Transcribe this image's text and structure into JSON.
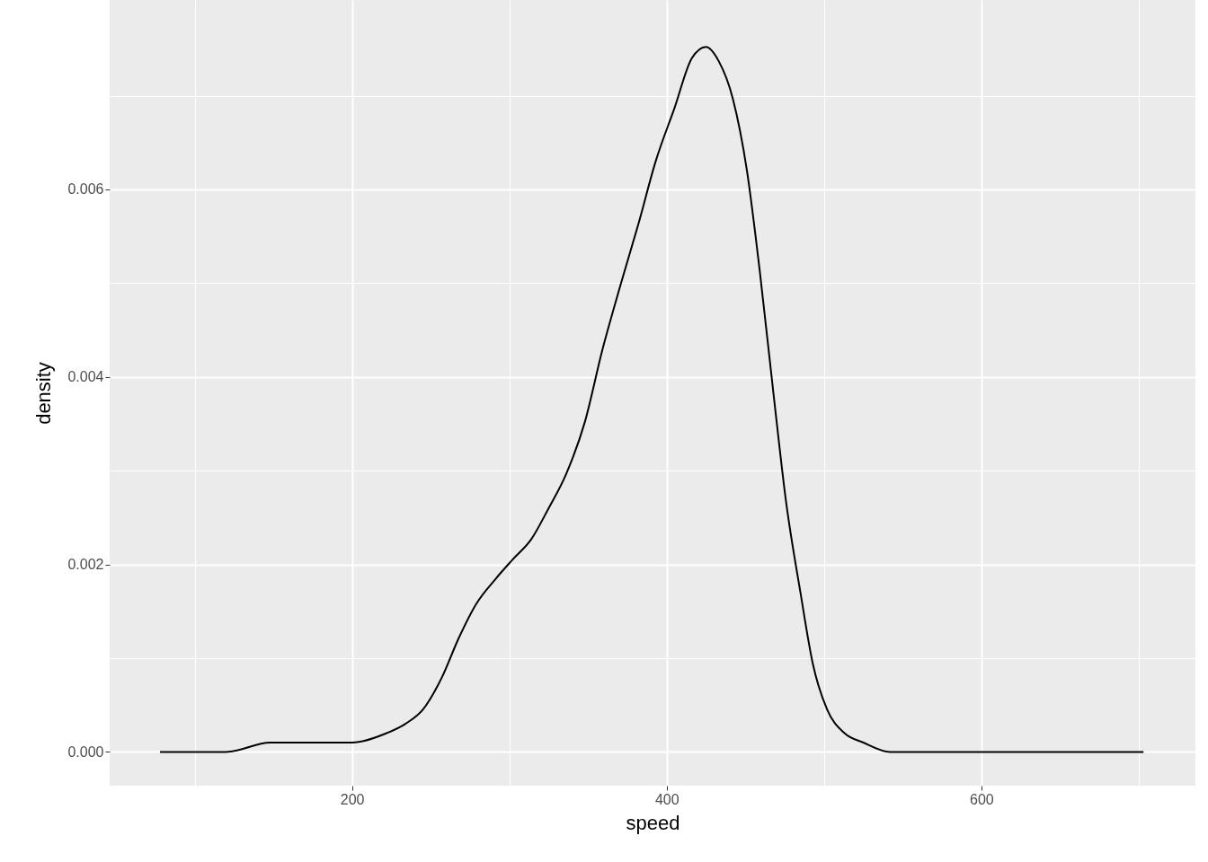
{
  "chart_data": {
    "type": "line",
    "xlabel": "speed",
    "ylabel": "density",
    "x": [
      78,
      120,
      148,
      177,
      200,
      222,
      234,
      245,
      257,
      268,
      279,
      291,
      302,
      314,
      325,
      336,
      348,
      359,
      371,
      382,
      393,
      405,
      416,
      425,
      433,
      442,
      451,
      459,
      468,
      476,
      485,
      493,
      502,
      513,
      525,
      542,
      576,
      703
    ],
    "series": [
      {
        "color": "#000000",
        "values": [
          0,
          0,
          0.0001,
          0.0001,
          0.0001,
          0.0002,
          0.0003,
          0.00045,
          0.00079,
          0.00122,
          0.00158,
          0.00184,
          0.00205,
          0.00227,
          0.0026,
          0.00296,
          0.00352,
          0.00428,
          0.005,
          0.00563,
          0.0063,
          0.00687,
          0.0074,
          0.00752,
          0.00737,
          0.00697,
          0.0062,
          0.00515,
          0.0038,
          0.00265,
          0.0017,
          0.00093,
          0.00045,
          0.0002,
          0.0001,
          0,
          0,
          0
        ]
      }
    ],
    "xlim": [
      46,
      736
    ],
    "ylim": [
      -0.00036,
      0.00802
    ],
    "xticks": [
      {
        "value": 100,
        "label": null
      },
      200,
      {
        "value": 300,
        "label": null
      },
      400,
      {
        "value": 500,
        "label": null
      },
      600,
      {
        "value": 700,
        "label": null
      }
    ],
    "yticks": [
      {
        "value": 0,
        "label": "0.000"
      },
      {
        "value": 0.001,
        "label": null
      },
      {
        "value": 0.002,
        "label": "0.002"
      },
      {
        "value": 0.003,
        "label": null
      },
      {
        "value": 0.004,
        "label": "0.004"
      },
      {
        "value": 0.005,
        "label": null
      },
      {
        "value": 0.006,
        "label": "0.006"
      },
      {
        "value": 0.007,
        "label": null
      }
    ],
    "grid": true,
    "marker": "none",
    "line_style": "solid"
  }
}
